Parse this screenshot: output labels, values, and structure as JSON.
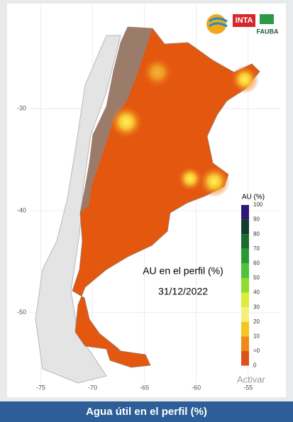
{
  "map": {
    "title": "AU en el perfil (%)",
    "date": "31/12/2022",
    "xlim": [
      -76.2,
      -51.9
    ],
    "ylim": [
      -56.9,
      -19.9
    ],
    "xticks": [
      -75,
      -70,
      -65,
      -60,
      -55
    ],
    "yticks": [
      -30,
      -40,
      -50
    ],
    "legend": {
      "title": "AU (%)",
      "ticks": [
        100,
        90,
        80,
        70,
        60,
        50,
        40,
        30,
        20,
        10,
        ">0",
        0
      ]
    }
  },
  "logos": [
    "INTA",
    "FAUBA"
  ],
  "watermark": "Activar",
  "footer": "Agua útil en el perfil (%)"
}
